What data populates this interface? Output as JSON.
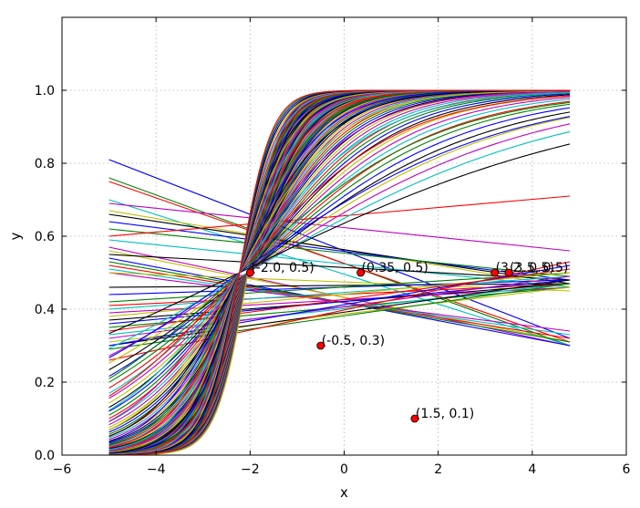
{
  "chart_data": {
    "type": "line",
    "title": "",
    "xlabel": "x",
    "ylabel": "y",
    "xlim": [
      -6,
      6
    ],
    "ylim": [
      0,
      1.2
    ],
    "xticks": [
      -6,
      -4,
      -2,
      0,
      2,
      4,
      6
    ],
    "xtick_labels": [
      "−6",
      "−4",
      "−2",
      "0",
      "2",
      "4",
      "6"
    ],
    "yticks": [
      0.0,
      0.2,
      0.4,
      0.6,
      0.8,
      1.0
    ],
    "ytick_labels": [
      "0.0",
      "0.2",
      "0.4",
      "0.6",
      "0.8",
      "1.0"
    ],
    "grid": true,
    "legend": "none",
    "curve_x_range": [
      -5,
      4.8
    ],
    "series_colors": [
      "#0000ff",
      "#008000",
      "#ff0000",
      "#00bfbf",
      "#bf00bf",
      "#bfbf00",
      "#000000"
    ],
    "sigmoid_families": [
      {
        "w_start": 0.3,
        "w_end": 3.0,
        "b_const": 5.0,
        "count": 80
      },
      {
        "w_start": 0.25,
        "w_end": 3.0,
        "b_const": 5.5,
        "count": 25
      }
    ],
    "flat_lines": [
      {
        "y_start": 0.81,
        "y_end": 0.32
      },
      {
        "y_start": 0.76,
        "y_end": 0.3
      },
      {
        "y_start": 0.75,
        "y_end": 0.31
      },
      {
        "y_start": 0.7,
        "y_end": 0.3
      },
      {
        "y_start": 0.69,
        "y_end": 0.56
      },
      {
        "y_start": 0.67,
        "y_end": 0.46
      },
      {
        "y_start": 0.66,
        "y_end": 0.47
      },
      {
        "y_start": 0.64,
        "y_end": 0.48
      },
      {
        "y_start": 0.62,
        "y_end": 0.49
      },
      {
        "y_start": 0.6,
        "y_end": 0.71
      },
      {
        "y_start": 0.59,
        "y_end": 0.46
      },
      {
        "y_start": 0.57,
        "y_end": 0.3
      },
      {
        "y_start": 0.56,
        "y_end": 0.31
      },
      {
        "y_start": 0.55,
        "y_end": 0.48
      },
      {
        "y_start": 0.54,
        "y_end": 0.3
      },
      {
        "y_start": 0.53,
        "y_end": 0.31
      },
      {
        "y_start": 0.52,
        "y_end": 0.32
      },
      {
        "y_start": 0.51,
        "y_end": 0.33
      },
      {
        "y_start": 0.5,
        "y_end": 0.34
      },
      {
        "y_start": 0.5,
        "y_end": 0.45
      },
      {
        "y_start": 0.46,
        "y_end": 0.47
      },
      {
        "y_start": 0.44,
        "y_end": 0.48
      },
      {
        "y_start": 0.42,
        "y_end": 0.5
      },
      {
        "y_start": 0.41,
        "y_end": 0.47
      },
      {
        "y_start": 0.4,
        "y_end": 0.49
      },
      {
        "y_start": 0.39,
        "y_end": 0.46
      },
      {
        "y_start": 0.38,
        "y_end": 0.5
      },
      {
        "y_start": 0.37,
        "y_end": 0.47
      },
      {
        "y_start": 0.36,
        "y_end": 0.48
      },
      {
        "y_start": 0.35,
        "y_end": 0.46
      },
      {
        "y_start": 0.34,
        "y_end": 0.51
      },
      {
        "y_start": 0.33,
        "y_end": 0.47
      },
      {
        "y_start": 0.32,
        "y_end": 0.49
      },
      {
        "y_start": 0.31,
        "y_end": 0.46
      },
      {
        "y_start": 0.3,
        "y_end": 0.48
      },
      {
        "y_start": 0.3,
        "y_end": 0.52
      },
      {
        "y_start": 0.29,
        "y_end": 0.47
      },
      {
        "y_start": 0.26,
        "y_end": 0.53
      }
    ],
    "points": [
      {
        "x": -2.0,
        "y": 0.5,
        "label": "(-2.0, 0.5)"
      },
      {
        "x": 0.35,
        "y": 0.5,
        "label": "(0.35, 0.5)"
      },
      {
        "x": 3.2,
        "y": 0.5,
        "label": "(3.2, 0.5)"
      },
      {
        "x": 3.5,
        "y": 0.5,
        "label": "(3.5, 0.5)"
      },
      {
        "x": -0.5,
        "y": 0.3,
        "label": "(-0.5, 0.3)"
      },
      {
        "x": 1.5,
        "y": 0.1,
        "label": "(1.5, 0.1)"
      }
    ],
    "point_color": "#ff0000"
  }
}
